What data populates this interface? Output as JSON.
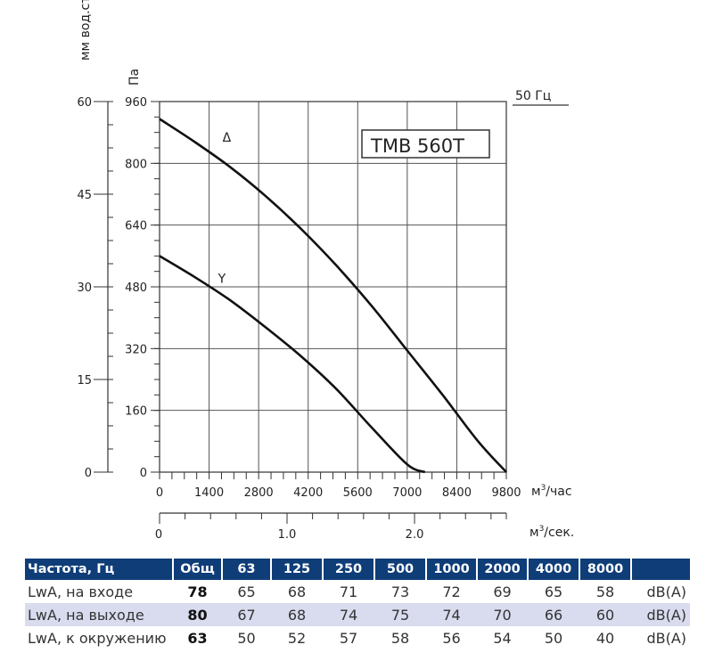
{
  "chart_data": {
    "type": "line",
    "title": "TMB 560T",
    "frequency_label": "50 Гц",
    "xlabel": "м³/час",
    "xlabel2": "м³/сек.",
    "ylabel_left": "мм вод.ст.",
    "ylabel_right": "Па",
    "xlim": [
      0,
      9800
    ],
    "ylim": [
      0,
      960
    ],
    "x_ticks": [
      0,
      1400,
      2800,
      4200,
      5600,
      7000,
      8400,
      9800
    ],
    "y_ticks_pa": [
      0,
      160,
      320,
      480,
      640,
      800,
      960
    ],
    "y_ticks_mm": [
      0,
      15,
      30,
      45,
      60
    ],
    "x2_ticks": [
      {
        "value": 0,
        "label": "0"
      },
      {
        "value": 1.0,
        "label": "1.0"
      },
      {
        "value": 2.0,
        "label": "2.0"
      }
    ],
    "x2_lim": [
      0,
      2.72
    ],
    "grid": true,
    "series": [
      {
        "name": "Δ",
        "x": [
          0,
          1000,
          2000,
          3000,
          4000,
          5000,
          6000,
          7000,
          8000,
          9000,
          9800
        ],
        "y": [
          915,
          855,
          790,
          715,
          630,
          535,
          430,
          315,
          200,
          80,
          0
        ]
      },
      {
        "name": "Y",
        "x": [
          0,
          1000,
          2000,
          3000,
          4000,
          5000,
          6000,
          7000,
          7500
        ],
        "y": [
          560,
          505,
          445,
          375,
          300,
          215,
          115,
          20,
          0
        ]
      }
    ]
  },
  "noise_table": {
    "header": [
      "Частота, Гц",
      "Общ",
      "63",
      "125",
      "250",
      "500",
      "1000",
      "2000",
      "4000",
      "8000",
      ""
    ],
    "rows": [
      {
        "label": "LwA, на входе",
        "total": "78",
        "values": [
          "65",
          "68",
          "71",
          "73",
          "72",
          "69",
          "65",
          "58"
        ],
        "unit": "dB(A)"
      },
      {
        "label": "LwA, на выходе",
        "total": "80",
        "values": [
          "67",
          "68",
          "74",
          "75",
          "74",
          "70",
          "66",
          "60"
        ],
        "unit": "dB(A)"
      },
      {
        "label": "LwA, к окружению",
        "total": "63",
        "values": [
          "50",
          "52",
          "57",
          "58",
          "56",
          "54",
          "50",
          "40"
        ],
        "unit": "dB(A)"
      }
    ]
  },
  "colors": {
    "header_bg": "#0f3d78",
    "alt_row": "#d9dcef",
    "curve": "#111111",
    "grid": "#555555"
  }
}
